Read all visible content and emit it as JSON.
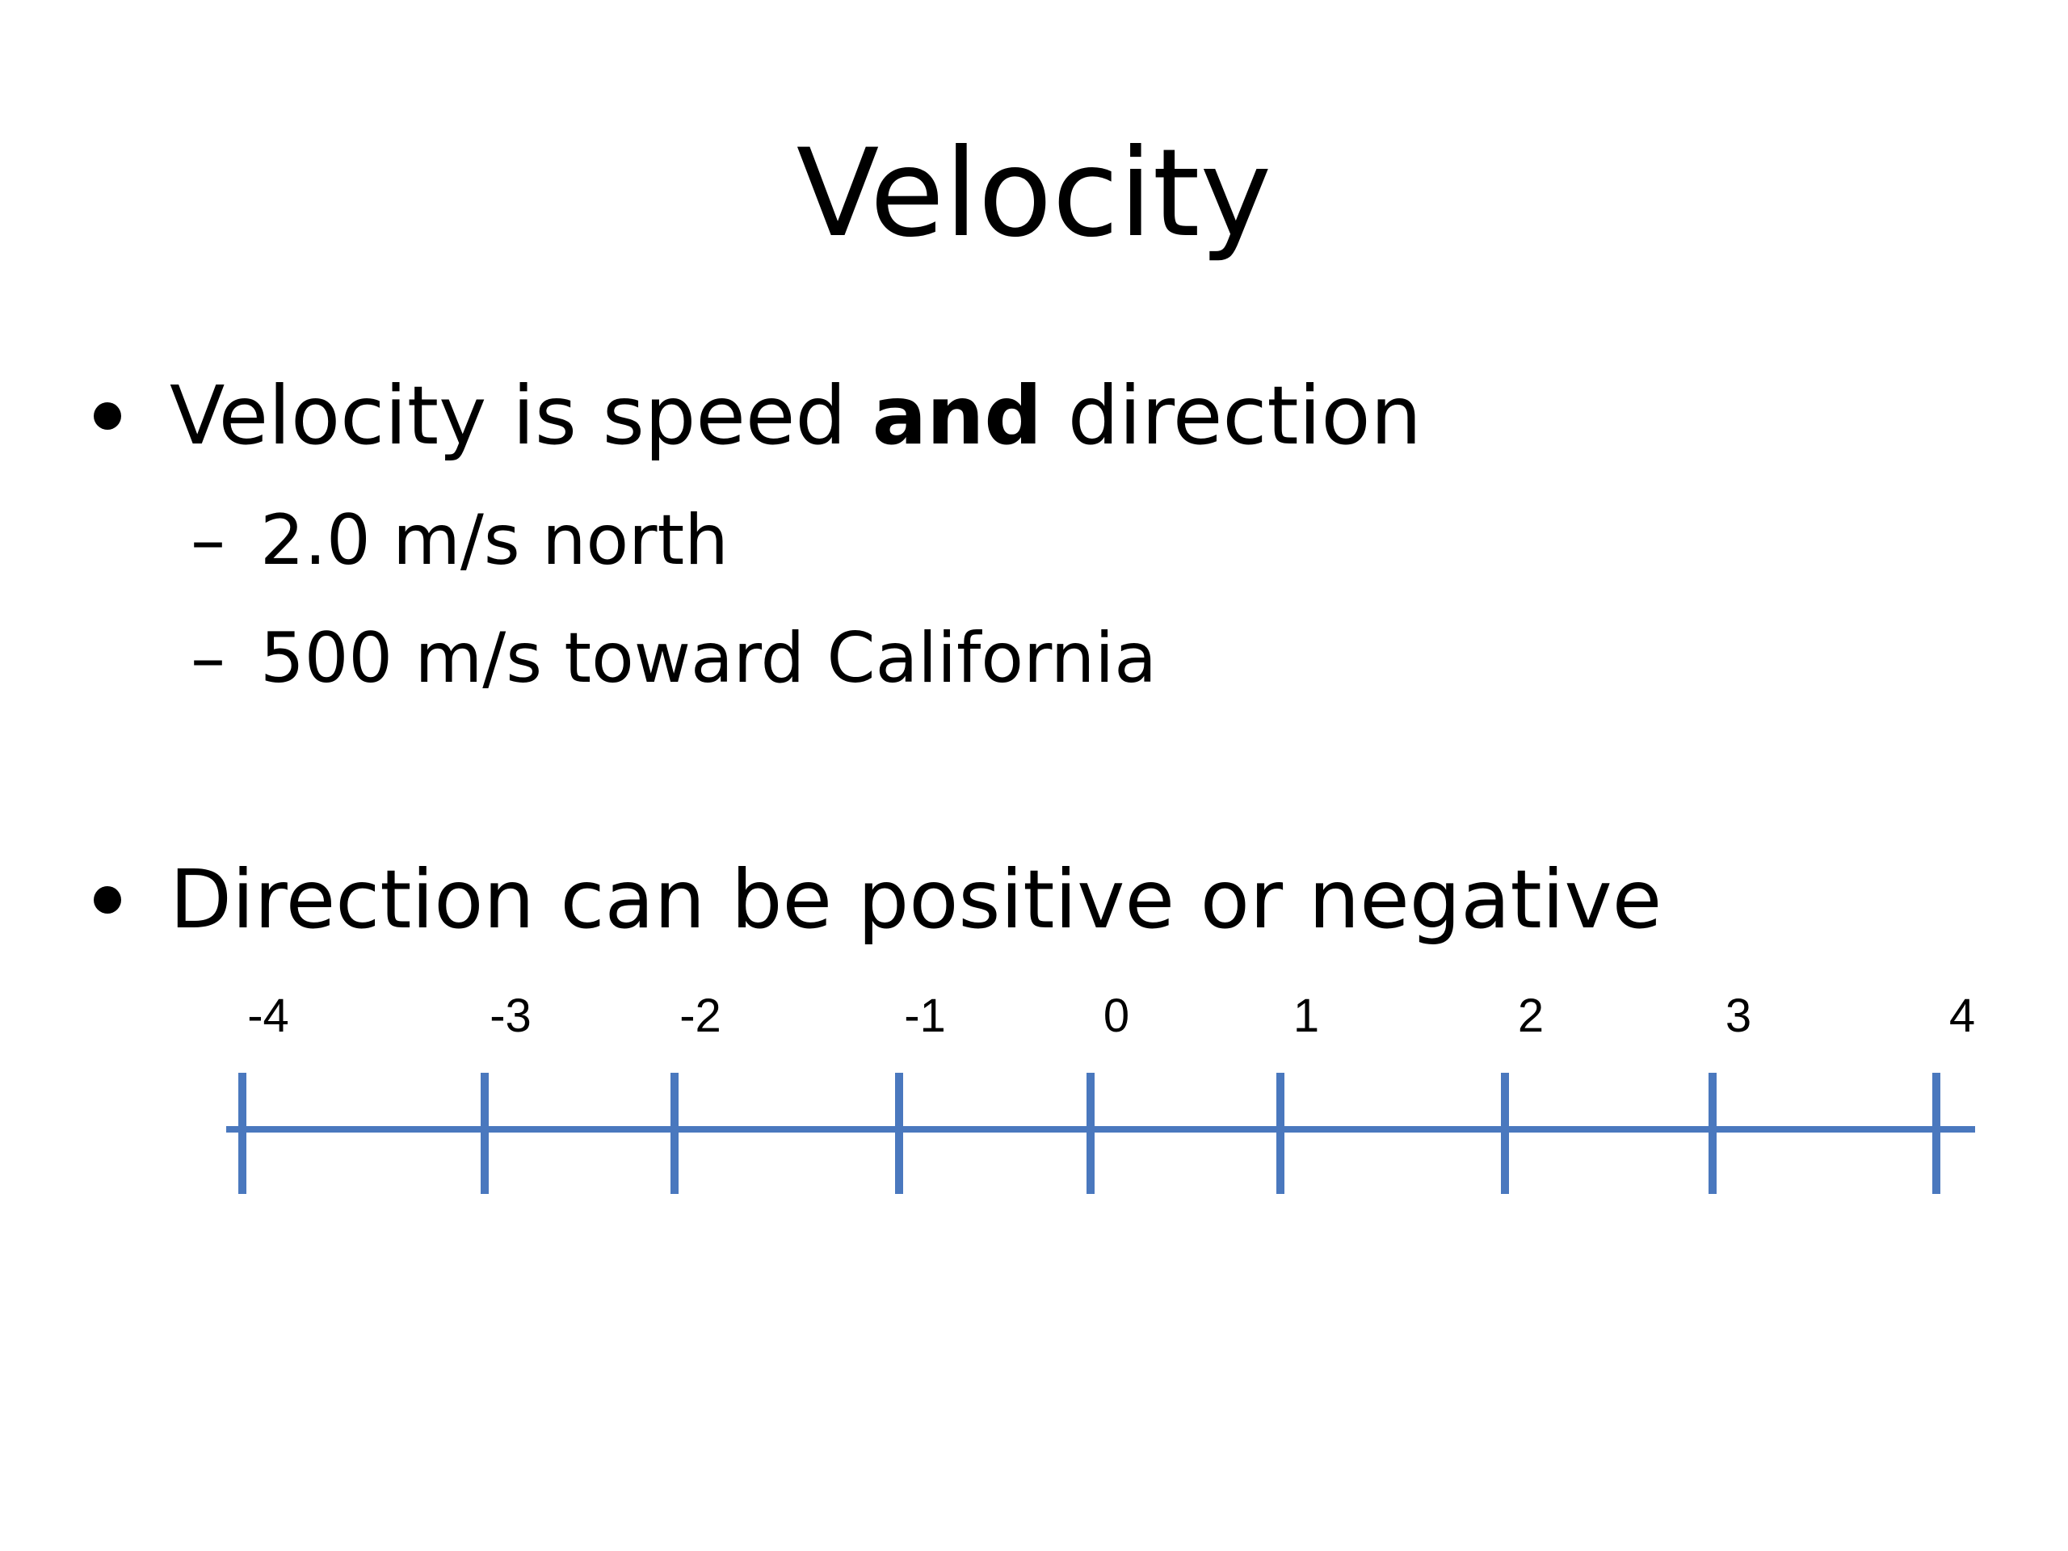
{
  "slide": {
    "title": "Velocity",
    "bullets": [
      {
        "text_before": "Velocity is speed ",
        "text_bold": "and",
        "text_after": " direction",
        "subitems": [
          {
            "dash": "–",
            "text": "2.0 m/s north"
          },
          {
            "dash": "–",
            "text": "500 m/s toward California"
          }
        ]
      },
      {
        "text": "Direction can be positive or negative"
      }
    ]
  },
  "number_line": {
    "color": "#4A78BE",
    "ticks": [
      "-4",
      "-3",
      "-2",
      "-1",
      "0",
      "1",
      "2",
      "3",
      "4"
    ]
  }
}
